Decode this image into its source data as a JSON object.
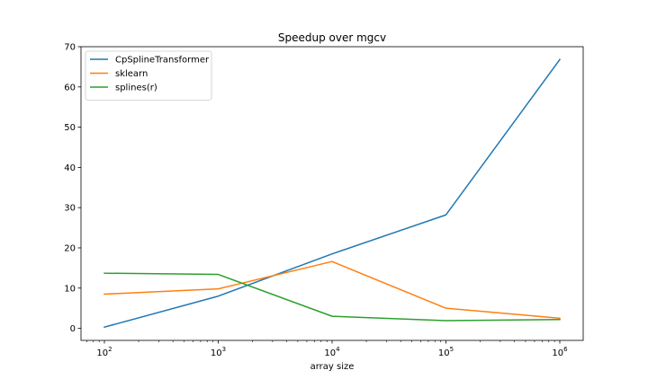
{
  "chart_data": {
    "type": "line",
    "title": "Speedup over mgcv",
    "xlabel": "array size",
    "ylabel": "",
    "xscale": "log",
    "x": [
      100,
      1000,
      10000,
      100000,
      1000000
    ],
    "x_tick_labels": [
      {
        "base": "10",
        "exp": "2"
      },
      {
        "base": "10",
        "exp": "3"
      },
      {
        "base": "10",
        "exp": "4"
      },
      {
        "base": "10",
        "exp": "5"
      },
      {
        "base": "10",
        "exp": "6"
      }
    ],
    "ylim": [
      -3,
      70
    ],
    "y_ticks": [
      0,
      10,
      20,
      30,
      40,
      50,
      60,
      70
    ],
    "grid": false,
    "legend_position": "top-left",
    "series": [
      {
        "name": "CpSplineTransformer",
        "color": "#1f77b4",
        "values": [
          0.3,
          8.0,
          18.5,
          28.2,
          66.8
        ]
      },
      {
        "name": "sklearn",
        "color": "#ff7f0e",
        "values": [
          8.5,
          9.8,
          16.6,
          5.0,
          2.5
        ]
      },
      {
        "name": "splines(r)",
        "color": "#2ca02c",
        "values": [
          13.7,
          13.4,
          3.0,
          1.9,
          2.2
        ]
      }
    ]
  }
}
